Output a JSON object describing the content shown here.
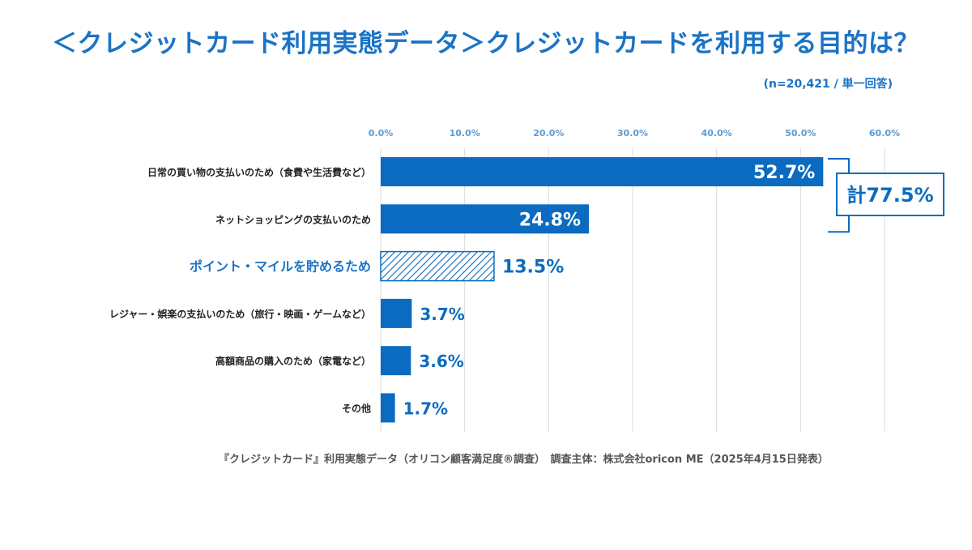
{
  "title": "＜クレジットカード利用実態データ＞クレジットカードを利用する目的は？",
  "sample_note": "(n=20,421 / 単一回答)",
  "source": "『クレジットカード』利用実態データ（オリコン顧客満足度®調査）　調査主体：株式会社oricon ME（2025年4月15日発表）",
  "chart_data": {
    "type": "bar",
    "orientation": "horizontal",
    "unit": "%",
    "xlim": [
      0,
      60
    ],
    "ticks": [
      "0.0%",
      "10.0%",
      "20.0%",
      "30.0%",
      "40.0%",
      "50.0%",
      "60.0%"
    ],
    "grid": true,
    "categories": [
      "日常の買い物の支払いのため（食費や生活費など）",
      "ネットショッピングの支払いのため",
      "ポイント・マイルを貯めるため",
      "レジャー・娯楽の支払いのため（旅行・映画・ゲームなど）",
      "高額商品の購入のため（家電など）",
      "その他"
    ],
    "values": [
      52.7,
      24.8,
      13.5,
      3.7,
      3.6,
      1.7
    ],
    "data_labels": [
      "52.7%",
      "24.8%",
      "13.5%",
      "3.7%",
      "3.6%",
      "1.7%"
    ],
    "highlighted_index": 2,
    "annotation": {
      "text": "計77.5%",
      "spans_categories": [
        0,
        1
      ]
    },
    "colors": {
      "bar": "#0b6bc0",
      "highlight_text": "#1a73c6",
      "grid": "#d9d9d9",
      "tick": "#5b9bd5"
    }
  }
}
